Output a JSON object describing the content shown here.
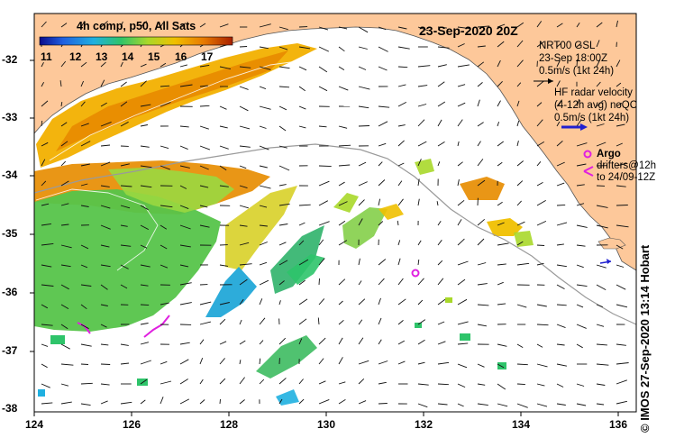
{
  "map": {
    "product_title": "4h comp, p50, All Sats",
    "date_title": "23-Sep-2020 20Z",
    "colorbar": {
      "ticks": [
        "11",
        "12",
        "13",
        "14",
        "15",
        "16",
        "17"
      ],
      "colors": [
        "#0a0a8c",
        "#1f5fe0",
        "#1fb0e0",
        "#2ec46a",
        "#a8d82a",
        "#f0c000",
        "#e87a00",
        "#a82000"
      ]
    },
    "wind_legend": {
      "line1": "NRT00 GSL",
      "line2": "23-Sep 18:00Z",
      "line3": "0.5m/s (1kt 24h)"
    },
    "radar_legend": {
      "line1": "HF radar velocity",
      "line2": "(4-12h avg) noQC",
      "line3": "0.5m/s (1kt 24h)"
    },
    "argo_legend": {
      "title": "Argo",
      "line1": "drifters@12h",
      "line2": "to 24/09-12Z"
    },
    "x_ticks": [
      "124",
      "126",
      "128",
      "130",
      "132",
      "134",
      "136"
    ],
    "y_ticks": [
      "-32",
      "-33",
      "-34",
      "-35",
      "-36",
      "-37",
      "-38"
    ],
    "credit": "© IMOS 27-Sep-2020 13:14 Hobart",
    "colors": {
      "land": "#fdc89a",
      "argo": "#e020e0",
      "radar": "#2020d0",
      "frame": "#000000"
    }
  }
}
